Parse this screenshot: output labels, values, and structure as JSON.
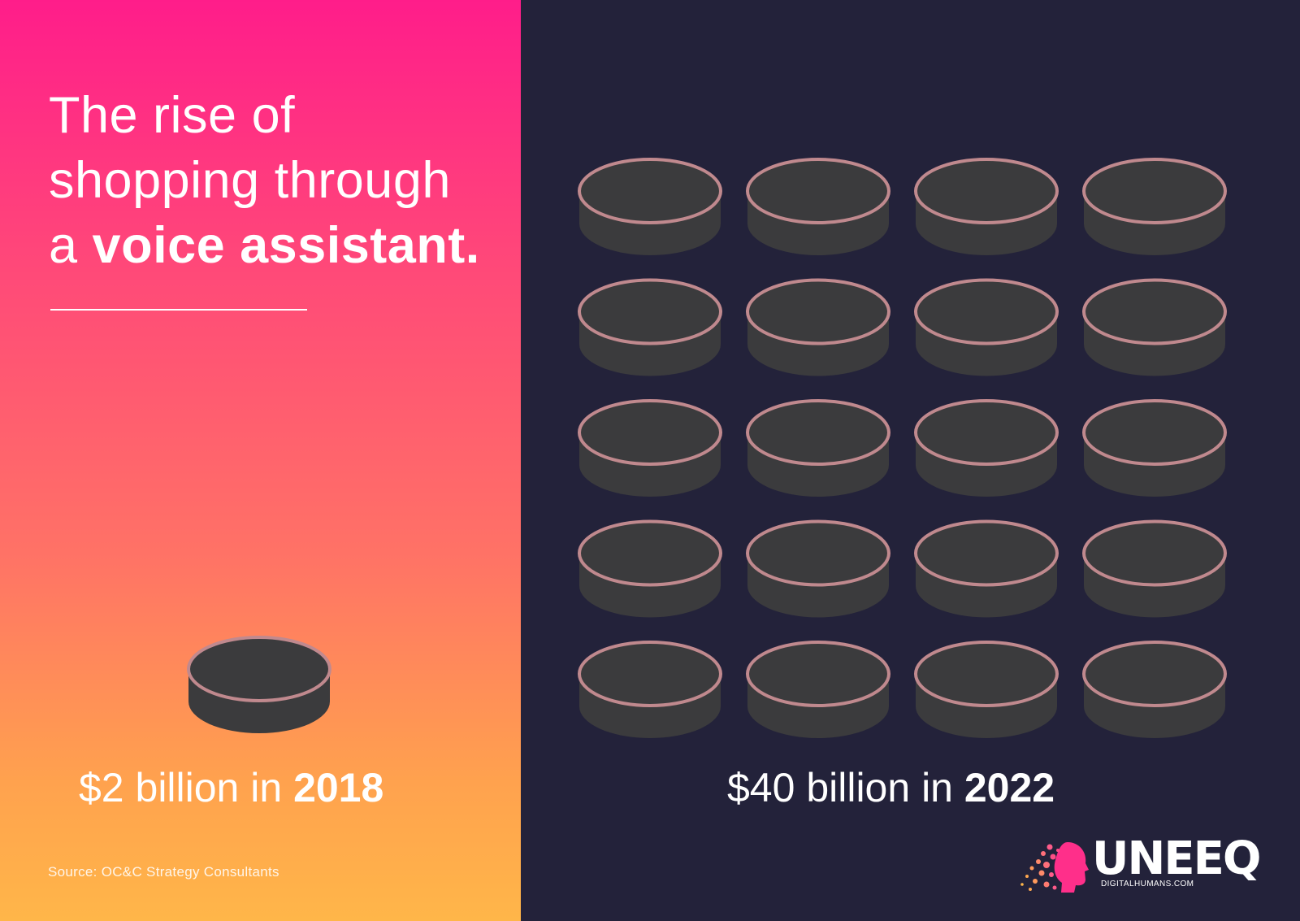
{
  "headline": {
    "line1": "The rise of",
    "line2": "shopping through",
    "line3_prefix": "a ",
    "line3_emphasis": "voice assistant."
  },
  "left_figure": {
    "amount": "$2 billion in ",
    "year": "2018",
    "coins": 1
  },
  "right_figure": {
    "amount": "$40 billion in ",
    "year": "2022",
    "coins": 20
  },
  "source": "Source: OC&C Strategy Consultants",
  "logo": {
    "word": "UNEEQ",
    "tagline": "DIGITALHUMANS.COM"
  },
  "colors": {
    "gradient_top": "#ff1d8a",
    "gradient_bottom": "#ffb649",
    "dark_panel": "#23223a",
    "coin_fill": "#3b3b3d",
    "coin_rim": "#c0898e"
  }
}
